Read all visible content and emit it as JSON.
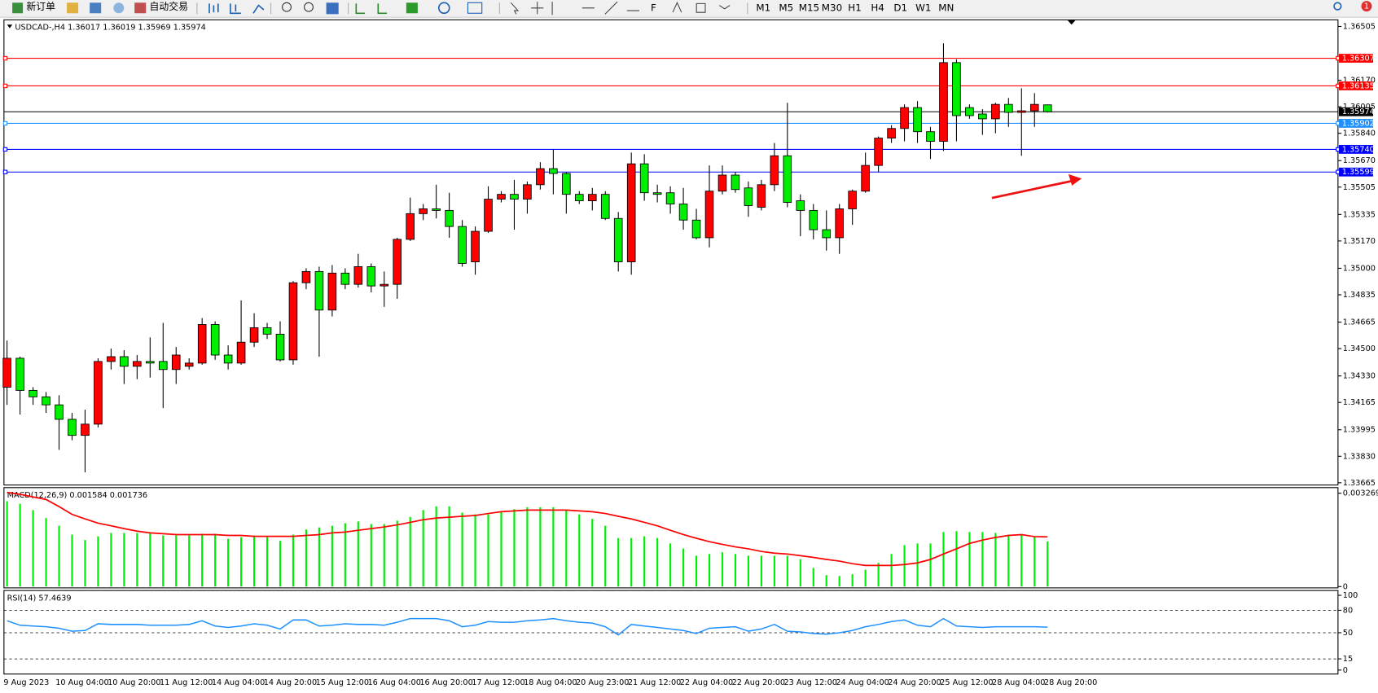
{
  "toolbar": {
    "new_order": "新订单",
    "auto_trading": "自动交易",
    "timeframes": [
      "M1",
      "M5",
      "M15",
      "M30",
      "H1",
      "H4",
      "D1",
      "W1",
      "MN"
    ],
    "notifications": "1"
  },
  "chart_data": [
    {
      "type": "candlestick",
      "title": "USDCAD-,H4 1.36017 1.36019 1.35969 1.35974",
      "up_color": "#ff0000",
      "down_color": "#00ee00",
      "categories": [
        "9 Aug 2023",
        null,
        null,
        null,
        "10 Aug 04:00",
        null,
        null,
        null,
        "10 Aug 20:00",
        null,
        null,
        null,
        "11 Aug 12:00",
        null,
        null,
        null,
        "14 Aug 04:00",
        null,
        null,
        null,
        "14 Aug 20:00",
        null,
        null,
        null,
        "15 Aug 12:00",
        null,
        null,
        null,
        "16 Aug 04:00",
        null,
        null,
        null,
        "16 Aug 20:00",
        null,
        null,
        null,
        "17 Aug 12:00",
        null,
        null,
        null,
        "18 Aug 04:00",
        null,
        null,
        null,
        "20 Aug 23:00",
        null,
        null,
        null,
        "21 Aug 12:00",
        null,
        null,
        null,
        "22 Aug 04:00",
        null,
        null,
        null,
        "22 Aug 20:00",
        null,
        null,
        null,
        "23 Aug 12:00",
        null,
        null,
        null,
        "24 Aug 04:00",
        null,
        null,
        null,
        "24 Aug 20:00",
        null,
        null,
        null,
        "25 Aug 12:00",
        null,
        null,
        null,
        "28 Aug 04:00",
        null,
        null,
        null,
        "28 Aug 20:00"
      ],
      "open": [
        1.3426,
        1.3444,
        1.3424,
        1.342,
        1.3415,
        1.3406,
        1.3396,
        1.3403,
        1.3442,
        1.3445,
        1.3439,
        1.3442,
        1.3442,
        1.3437,
        1.3439,
        1.3441,
        1.3465,
        1.3446,
        1.3441,
        1.3454,
        1.3463,
        1.3459,
        1.3443,
        1.3491,
        1.3498,
        1.3474,
        1.3497,
        1.349,
        1.3501,
        1.3489,
        1.349,
        1.3518,
        1.3534,
        1.3537,
        1.3536,
        1.3526,
        1.3504,
        1.3523,
        1.3543,
        1.3546,
        1.3543,
        1.3552,
        1.3562,
        1.3559,
        1.3546,
        1.3542,
        1.3546,
        1.3531,
        1.3504,
        1.3565,
        1.3547,
        1.3547,
        1.354,
        1.353,
        1.3519,
        1.3548,
        1.3558,
        1.355,
        1.3538,
        1.3552,
        1.357,
        1.3542,
        1.3536,
        1.3524,
        1.3519,
        1.3537,
        1.3548,
        1.3564,
        1.3581,
        1.3587,
        1.36,
        1.3585,
        1.3579,
        1.3628,
        1.36,
        1.3596,
        1.3593,
        1.3602,
        1.3597,
        1.3598,
        1.36017
      ],
      "high": [
        1.3455,
        1.3445,
        1.3426,
        1.3423,
        1.3421,
        1.341,
        1.3412,
        1.3444,
        1.345,
        1.3449,
        1.3446,
        1.3457,
        1.3466,
        1.3451,
        1.3444,
        1.3469,
        1.3467,
        1.3452,
        1.348,
        1.3472,
        1.3466,
        1.3467,
        1.3492,
        1.35,
        1.3501,
        1.3502,
        1.35,
        1.3509,
        1.3503,
        1.3498,
        1.3519,
        1.3544,
        1.354,
        1.3552,
        1.3547,
        1.353,
        1.3526,
        1.3551,
        1.3548,
        1.3555,
        1.3554,
        1.3566,
        1.3574,
        1.356,
        1.3548,
        1.355,
        1.3548,
        1.3535,
        1.3572,
        1.3571,
        1.3552,
        1.3551,
        1.355,
        1.3537,
        1.3564,
        1.3564,
        1.356,
        1.3554,
        1.3555,
        1.3578,
        1.3603,
        1.3546,
        1.354,
        1.3536,
        1.354,
        1.3549,
        1.3572,
        1.3582,
        1.3589,
        1.3602,
        1.3604,
        1.3588,
        1.364,
        1.363,
        1.3602,
        1.3599,
        1.3603,
        1.3606,
        1.3612,
        1.3609,
        1.36019
      ],
      "low": [
        1.3415,
        1.3409,
        1.3415,
        1.341,
        1.3387,
        1.3393,
        1.3373,
        1.3401,
        1.3437,
        1.3428,
        1.3431,
        1.3432,
        1.3413,
        1.3428,
        1.3437,
        1.344,
        1.3443,
        1.3437,
        1.344,
        1.3451,
        1.3456,
        1.3442,
        1.344,
        1.3487,
        1.3445,
        1.347,
        1.3487,
        1.3488,
        1.3485,
        1.3476,
        1.3481,
        1.3517,
        1.353,
        1.3531,
        1.3519,
        1.3501,
        1.3496,
        1.3522,
        1.3541,
        1.3524,
        1.3534,
        1.3549,
        1.3546,
        1.3534,
        1.354,
        1.3536,
        1.353,
        1.3498,
        1.3496,
        1.3542,
        1.3541,
        1.3534,
        1.3524,
        1.3518,
        1.3513,
        1.3546,
        1.3547,
        1.3532,
        1.3536,
        1.3548,
        1.3538,
        1.352,
        1.3518,
        1.3511,
        1.3509,
        1.3527,
        1.3547,
        1.356,
        1.3578,
        1.3579,
        1.3578,
        1.3568,
        1.3573,
        1.3579,
        1.3593,
        1.3583,
        1.3584,
        1.3588,
        1.357,
        1.3588,
        1.35969
      ],
      "close": [
        1.3444,
        1.3424,
        1.342,
        1.3415,
        1.3406,
        1.3396,
        1.3403,
        1.3442,
        1.3445,
        1.3439,
        1.3442,
        1.3441,
        1.3437,
        1.3446,
        1.3441,
        1.3465,
        1.3446,
        1.3441,
        1.3454,
        1.3463,
        1.3459,
        1.3443,
        1.3491,
        1.3498,
        1.3474,
        1.3497,
        1.349,
        1.3501,
        1.3489,
        1.349,
        1.3518,
        1.3534,
        1.3537,
        1.3536,
        1.3526,
        1.3503,
        1.3523,
        1.3543,
        1.3546,
        1.3543,
        1.3552,
        1.3562,
        1.3559,
        1.3546,
        1.3542,
        1.3546,
        1.3531,
        1.3504,
        1.3565,
        1.3547,
        1.3546,
        1.354,
        1.353,
        1.3519,
        1.3548,
        1.3558,
        1.3549,
        1.3539,
        1.3552,
        1.357,
        1.3541,
        1.3536,
        1.3524,
        1.3519,
        1.3537,
        1.3548,
        1.3564,
        1.3581,
        1.3587,
        1.36,
        1.3585,
        1.3579,
        1.3628,
        1.3595,
        1.3595,
        1.3593,
        1.3602,
        1.3597,
        1.3598,
        1.3602,
        1.35974
      ],
      "ylim": [
        1.33665,
        1.36505
      ],
      "yticks": [
        1.36505,
        {
          "value": 1.3617,
          "label": "1.36170"
        },
        1.36005,
        {
          "value": 1.3584,
          "label": "1.35840"
        },
        {
          "value": 1.3567,
          "label": "1.35670"
        },
        1.35505,
        1.35335,
        {
          "value": 1.3517,
          "label": "1.35170"
        },
        {
          "value": 1.35,
          "label": "1.35000"
        },
        1.34835,
        1.34665,
        {
          "value": 1.345,
          "label": "1.34500"
        },
        {
          "value": 1.3433,
          "label": "1.34330"
        },
        1.34165,
        1.33995,
        {
          "value": 1.3383,
          "label": "1.33830"
        },
        1.33665
      ],
      "levels": [
        {
          "value": 1.36307,
          "color": "#ff0000"
        },
        {
          "value": 1.36135,
          "color": "#ff0000"
        },
        {
          "value": 1.35902,
          "color": "#1e90ff"
        },
        {
          "value": 1.3574,
          "label": "1.35740",
          "color": "#0000ff"
        },
        {
          "value": 1.35599,
          "color": "#0000ff"
        }
      ],
      "bid": 1.35974
    },
    {
      "type": "macd",
      "title": "MACD(12,26,9) 0.001584 0.001736",
      "series": [
        {
          "kind": "bar",
          "color": "#00ee00",
          "values": [
            0.00299,
            0.0029,
            0.00268,
            0.0024,
            0.00213,
            0.00182,
            0.00163,
            0.00176,
            0.00188,
            0.00188,
            0.00188,
            0.00188,
            0.00179,
            0.00179,
            0.00179,
            0.00185,
            0.00185,
            0.00167,
            0.00173,
            0.00179,
            0.00173,
            0.0016,
            0.00182,
            0.002,
            0.00207,
            0.00213,
            0.00222,
            0.00228,
            0.00219,
            0.00219,
            0.00231,
            0.00244,
            0.00268,
            0.00281,
            0.00281,
            0.00259,
            0.00253,
            0.00253,
            0.00262,
            0.00271,
            0.00278,
            0.00278,
            0.00278,
            0.00268,
            0.00253,
            0.00237,
            0.00213,
            0.0017,
            0.0017,
            0.00176,
            0.0017,
            0.00151,
            0.00133,
            0.00108,
            0.00114,
            0.0012,
            0.00114,
            0.00108,
            0.00108,
            0.00108,
            0.00108,
            0.00096,
            0.00065,
            0.0004,
            0.00037,
            0.00043,
            0.00059,
            0.00083,
            0.00114,
            0.00145,
            0.00151,
            0.00151,
            0.00191,
            0.00194,
            0.00191,
            0.00191,
            0.00188,
            0.00182,
            0.00182,
            0.00176,
            0.00158
          ]
        },
        {
          "kind": "line",
          "color": "#ff0000",
          "values": [
            0.0033,
            0.00323,
            0.00314,
            0.00305,
            0.0028,
            0.00253,
            0.00237,
            0.00222,
            0.00213,
            0.00203,
            0.00194,
            0.00188,
            0.00185,
            0.00182,
            0.00182,
            0.00182,
            0.00182,
            0.00179,
            0.00179,
            0.00176,
            0.00176,
            0.00176,
            0.00176,
            0.00179,
            0.00182,
            0.00188,
            0.00191,
            0.00197,
            0.00203,
            0.00209,
            0.00216,
            0.00225,
            0.00234,
            0.0024,
            0.00243,
            0.00246,
            0.00249,
            0.00256,
            0.00262,
            0.00265,
            0.00268,
            0.00268,
            0.00268,
            0.00268,
            0.00265,
            0.00262,
            0.00256,
            0.00246,
            0.00237,
            0.00225,
            0.00213,
            0.00197,
            0.00182,
            0.00169,
            0.00157,
            0.00148,
            0.00139,
            0.00132,
            0.00123,
            0.00117,
            0.00114,
            0.00108,
            0.00102,
            0.00095,
            0.00089,
            0.0008,
            0.00074,
            0.00074,
            0.00074,
            0.00077,
            0.00083,
            0.00095,
            0.00114,
            0.00132,
            0.00151,
            0.00163,
            0.00172,
            0.00179,
            0.00182,
            0.00175,
            0.00174
          ]
        }
      ],
      "ylim": [
        0,
        0.00345
      ],
      "yticks": [
        0.003269,
        0
      ]
    },
    {
      "type": "line",
      "title": "RSI(14) 57.4639",
      "color": "#1e90ff",
      "values": [
        66,
        60,
        59,
        58,
        56,
        52,
        53,
        62,
        61,
        61,
        61,
        60,
        60,
        60,
        61,
        66,
        59,
        57,
        59,
        62,
        60,
        55,
        67,
        67,
        59,
        60,
        62,
        61,
        61,
        60,
        64,
        69,
        69,
        69,
        66,
        58,
        60,
        65,
        64,
        64,
        66,
        67,
        69,
        66,
        64,
        63,
        58,
        47,
        61,
        59,
        57,
        55,
        53,
        49,
        56,
        57,
        58,
        52,
        55,
        61,
        52,
        51,
        49,
        48,
        50,
        53,
        58,
        61,
        65,
        67,
        60,
        58,
        69,
        59,
        58,
        57,
        58,
        58,
        58,
        58,
        57.46
      ],
      "ylim": [
        0,
        100
      ],
      "yticks": [
        100,
        80,
        50,
        15,
        0
      ]
    }
  ]
}
